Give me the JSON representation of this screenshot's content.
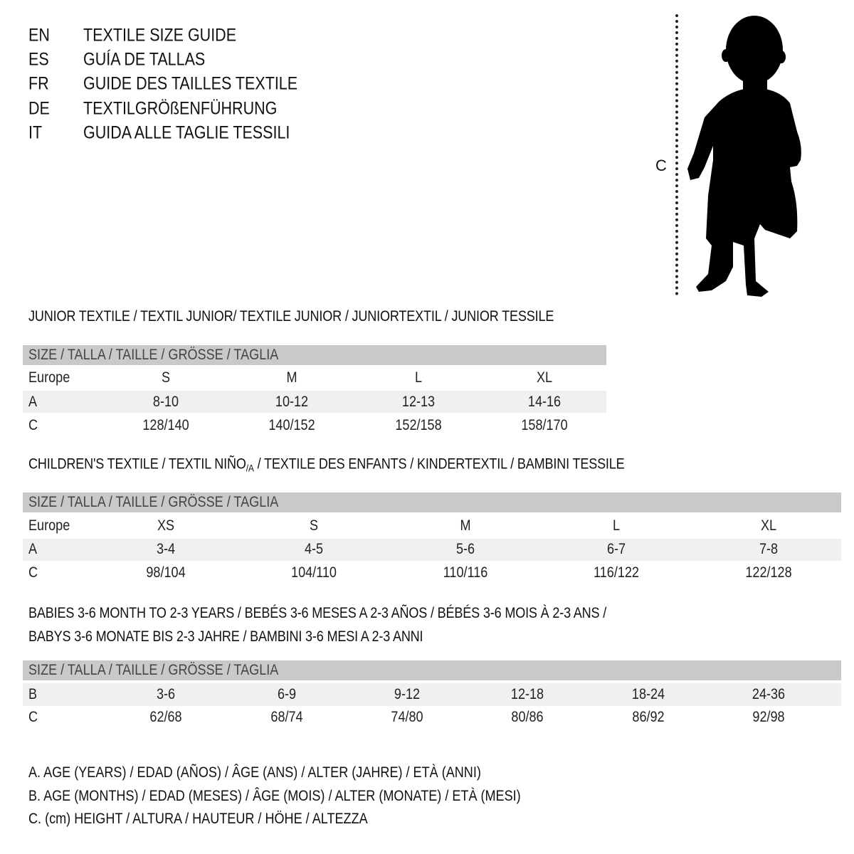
{
  "header": {
    "languages": [
      {
        "code": "EN",
        "title": "TEXTILE SIZE GUIDE"
      },
      {
        "code": "ES",
        "title": "GUÍA DE TALLAS"
      },
      {
        "code": "FR",
        "title": "GUIDE DES TAILLES TEXTILE"
      },
      {
        "code": "DE",
        "title": "TEXTILGRÖßENFÜHRUNG"
      },
      {
        "code": "IT",
        "title": "GUIDA ALLE TAGLIE TESSILI"
      }
    ]
  },
  "figure": {
    "height_label": "C",
    "icon": "child-silhouette"
  },
  "junior": {
    "title": "JUNIOR TEXTILE / TEXTIL JUNIOR/ TEXTILE JUNIOR / JUNIORTEXTIL / JUNIOR TESSILE",
    "size_header": "SIZE / TALLA / TAILLE / GRÖSSE / TAGLIA",
    "rows": [
      {
        "label": "Europe",
        "values": [
          "S",
          "M",
          "L",
          "XL"
        ]
      },
      {
        "label": "A",
        "values": [
          "8-10",
          "10-12",
          "12-13",
          "14-16"
        ]
      },
      {
        "label": "C",
        "values": [
          "128/140",
          "140/152",
          "152/158",
          "158/170"
        ]
      }
    ]
  },
  "children": {
    "title_part1": "CHILDREN'S TEXTILE / TEXTIL NIÑO",
    "title_sub": "/A",
    "title_part2": " / TEXTILE DES ENFANTS / KINDERTEXTIL / BAMBINI TESSILE",
    "size_header": "SIZE / TALLA / TAILLE / GRÖSSE / TAGLIA",
    "rows": [
      {
        "label": "Europe",
        "values": [
          "XS",
          "S",
          "M",
          "L",
          "XL"
        ]
      },
      {
        "label": "A",
        "values": [
          "3-4",
          "4-5",
          "5-6",
          "6-7",
          "7-8"
        ]
      },
      {
        "label": "C",
        "values": [
          "98/104",
          "104/110",
          "110/116",
          "116/122",
          "122/128"
        ]
      }
    ]
  },
  "babies": {
    "title_line1": "BABIES 3-6 MONTH TO 2-3 YEARS / BEBÉS 3-6 MESES A 2-3 AÑOS / BÉBÉS 3-6 MOIS À 2-3 ANS /",
    "title_line2": "BABYS 3-6 MONATE BIS 2-3 JAHRE / BAMBINI 3-6 MESI A 2-3 ANNI",
    "size_header": "SIZE / TALLA / TAILLE / GRÖSSE / TAGLIA",
    "rows": [
      {
        "label": "B",
        "values": [
          "3-6",
          "6-9",
          "9-12",
          "12-18",
          "18-24",
          "24-36"
        ]
      },
      {
        "label": "C",
        "values": [
          "62/68",
          "68/74",
          "74/80",
          "80/86",
          "86/92",
          "92/98"
        ]
      }
    ]
  },
  "legend": [
    "A. AGE (YEARS) / EDAD (AÑOS) / ÂGE (ANS) / ALTER (JAHRE) / ETÀ (ANNI)",
    "B. AGE (MONTHS) / EDAD (MESES) / ÂGE (MOIS) / ALTER (MONATE) / ETÀ (MESI)",
    "C. (cm) HEIGHT / ALTURA / HAUTEUR / HÖHE / ALTEZZA"
  ]
}
